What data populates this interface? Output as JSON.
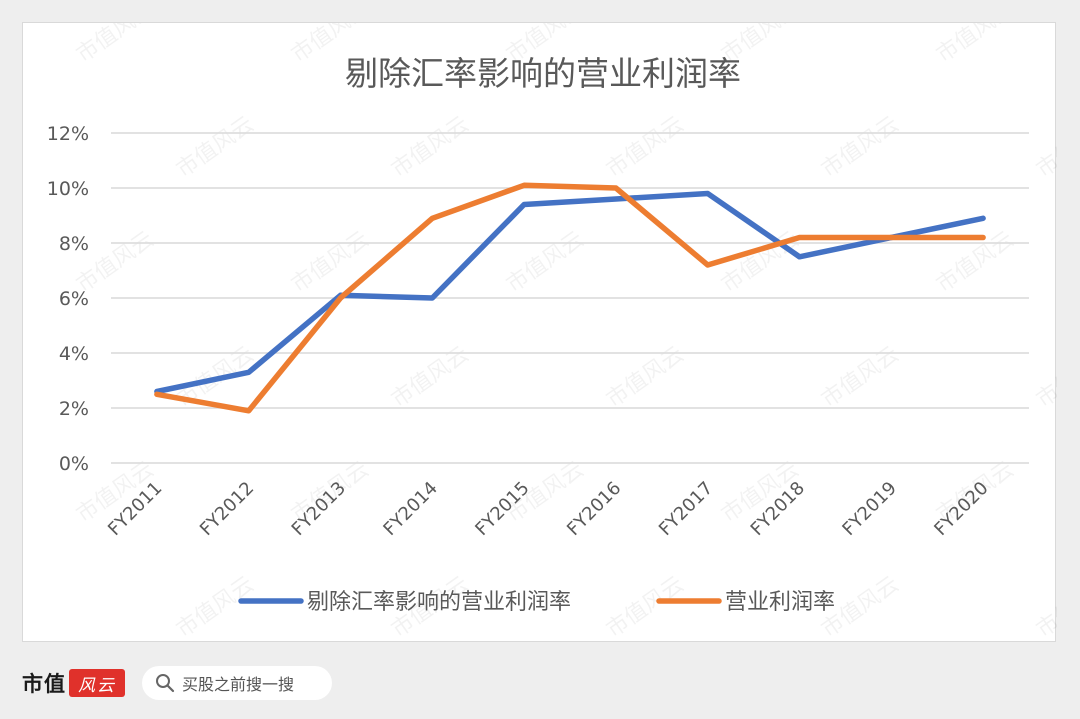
{
  "chart_data": {
    "type": "line",
    "title": "剔除汇率影响的营业利润率",
    "xlabel": "",
    "ylabel": "",
    "categories": [
      "FY2011",
      "FY2012",
      "FY2013",
      "FY2014",
      "FY2015",
      "FY2016",
      "FY2017",
      "FY2018",
      "FY2019",
      "FY2020"
    ],
    "series": [
      {
        "name": "剔除汇率影响的营业利润率",
        "color": "#4472c4",
        "values": [
          2.6,
          3.3,
          6.1,
          6.0,
          9.4,
          9.6,
          9.8,
          7.5,
          8.2,
          8.9
        ]
      },
      {
        "name": "营业利润率",
        "color": "#ed7d31",
        "values": [
          2.5,
          1.9,
          6.0,
          8.9,
          10.1,
          10.0,
          7.2,
          8.2,
          8.2,
          8.2
        ]
      }
    ],
    "ylim": [
      0,
      12
    ],
    "yticks": [
      "0%",
      "2%",
      "4%",
      "6%",
      "8%",
      "10%",
      "12%"
    ],
    "grid": true,
    "legend": "bottom"
  },
  "watermark": "市值风云",
  "footer": {
    "brand_text": "市值",
    "brand_logo_text": "风云",
    "search_placeholder": "买股之前搜一搜"
  }
}
